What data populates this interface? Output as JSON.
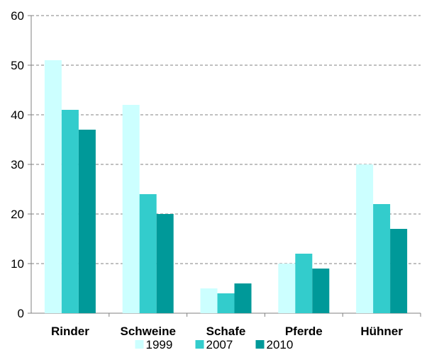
{
  "chart_data": {
    "type": "bar",
    "categories": [
      "Rinder",
      "Schweine",
      "Schafe",
      "Pferde",
      "Hühner"
    ],
    "series": [
      {
        "name": "1999",
        "values": [
          51,
          42,
          5,
          10,
          30
        ],
        "color": "#ccffff"
      },
      {
        "name": "2007",
        "values": [
          41,
          24,
          4,
          12,
          22
        ],
        "color": "#33cccc"
      },
      {
        "name": "2010",
        "values": [
          37,
          20,
          6,
          9,
          17
        ],
        "color": "#009999"
      }
    ],
    "title": "",
    "xlabel": "",
    "ylabel": "",
    "ylim": [
      0,
      60
    ],
    "yticks": [
      0,
      10,
      20,
      30,
      40,
      50,
      60
    ],
    "grid": true,
    "legend_position": "bottom"
  }
}
